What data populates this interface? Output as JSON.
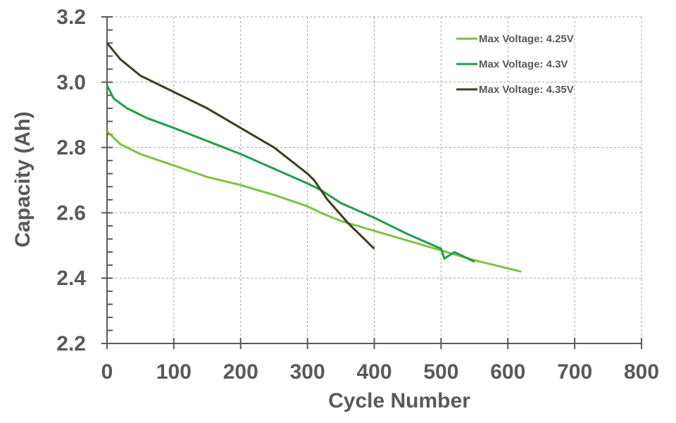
{
  "chart_data": {
    "type": "line",
    "title": "",
    "xlabel": "Cycle Number",
    "ylabel": "Capacity (Ah)",
    "xlim": [
      0,
      800
    ],
    "ylim": [
      2.2,
      3.2
    ],
    "x_ticks": [
      "0",
      "100",
      "200",
      "300",
      "400",
      "500",
      "600",
      "700",
      "800"
    ],
    "y_ticks": [
      "2.2",
      "2.4",
      "2.6",
      "2.8",
      "3.0",
      "3.2"
    ],
    "grid": true,
    "legend_position": "top-right",
    "series": [
      {
        "name": "Max Voltage: 4.25V",
        "color": "#7fc241",
        "x": [
          0,
          20,
          50,
          100,
          150,
          200,
          250,
          300,
          320,
          350,
          400,
          450,
          500,
          550,
          600,
          620
        ],
        "y": [
          2.85,
          2.81,
          2.78,
          2.745,
          2.71,
          2.685,
          2.655,
          2.62,
          2.6,
          2.575,
          2.545,
          2.515,
          2.485,
          2.455,
          2.43,
          2.42
        ]
      },
      {
        "name": "Max Voltage: 4.3V",
        "color": "#1f9e49",
        "x": [
          0,
          10,
          30,
          60,
          100,
          150,
          200,
          250,
          300,
          320,
          350,
          400,
          450,
          500,
          505,
          520,
          550
        ],
        "y": [
          2.99,
          2.95,
          2.92,
          2.89,
          2.86,
          2.82,
          2.78,
          2.735,
          2.69,
          2.67,
          2.63,
          2.585,
          2.535,
          2.49,
          2.46,
          2.48,
          2.45
        ]
      },
      {
        "name": "Max Voltage: 4.35V",
        "color": "#3b3f1f",
        "x": [
          0,
          20,
          50,
          100,
          150,
          200,
          250,
          300,
          310,
          330,
          360,
          400
        ],
        "y": [
          3.12,
          3.07,
          3.02,
          2.97,
          2.92,
          2.86,
          2.8,
          2.72,
          2.7,
          2.64,
          2.57,
          2.49
        ]
      }
    ]
  }
}
